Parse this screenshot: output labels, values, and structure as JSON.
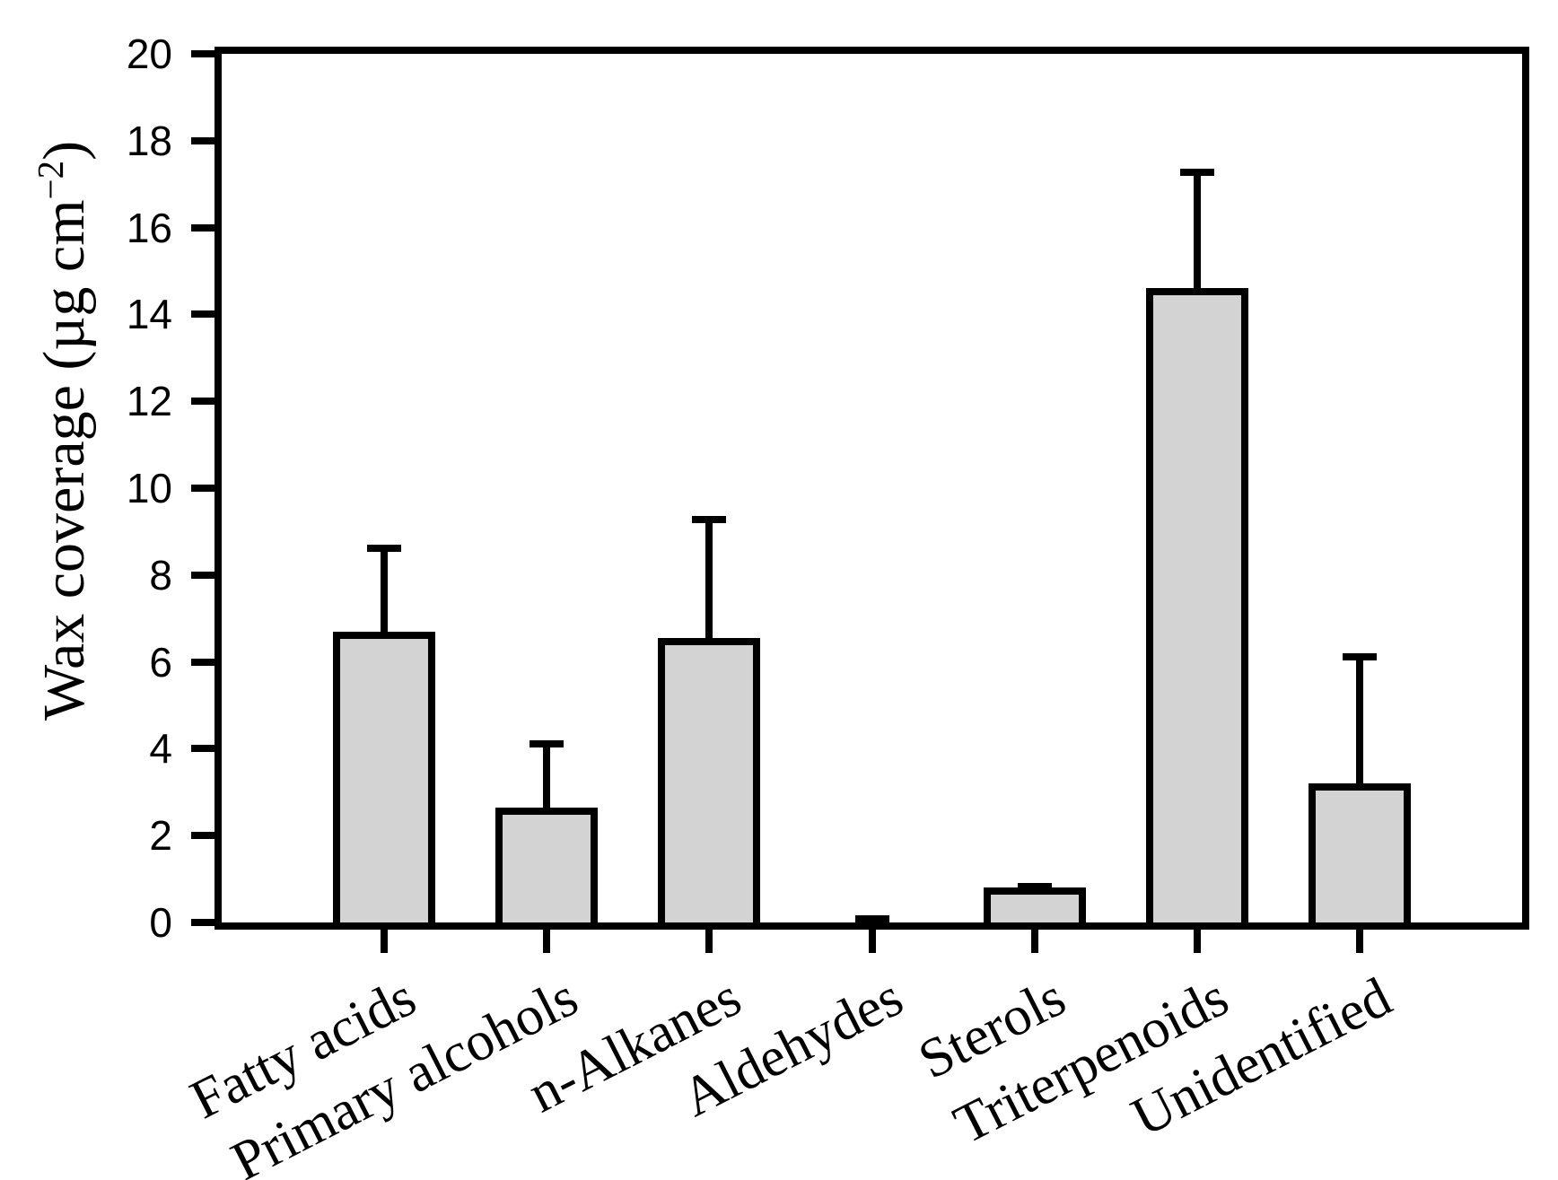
{
  "figure": {
    "background_color": "#ffffff",
    "axis_color": "#000000"
  },
  "chart_data": {
    "type": "bar",
    "title": "",
    "categories": [
      "Fatty acids",
      "Primary alcohols",
      "n-Alkanes",
      "Aldehydes",
      "Sterols",
      "Triterpenoids",
      "Unidentified"
    ],
    "values": [
      6.7,
      2.65,
      6.55,
      0.05,
      0.8,
      14.6,
      3.2
    ],
    "error_plus": [
      2.0,
      1.55,
      2.8,
      0.05,
      0.1,
      2.75,
      3.0
    ],
    "error_bar_tops": [
      8.7,
      4.2,
      9.35,
      0.1,
      0.9,
      17.35,
      6.2
    ],
    "xlabel": "",
    "ylabel": "Wax coverage (µg cm−2)",
    "ylabel_parts": {
      "main": "Wax coverage (µg cm",
      "superscript": "−2",
      "close": ")"
    },
    "y_ticks": [
      0,
      2,
      4,
      6,
      8,
      10,
      12,
      14,
      16,
      18,
      20
    ],
    "ylim": [
      0,
      20
    ],
    "grid": false,
    "legend": false,
    "error_bars": "plus_direction_with_caps",
    "bar_fill_color": "#d3d3d3",
    "bar_border_color": "#000000"
  }
}
